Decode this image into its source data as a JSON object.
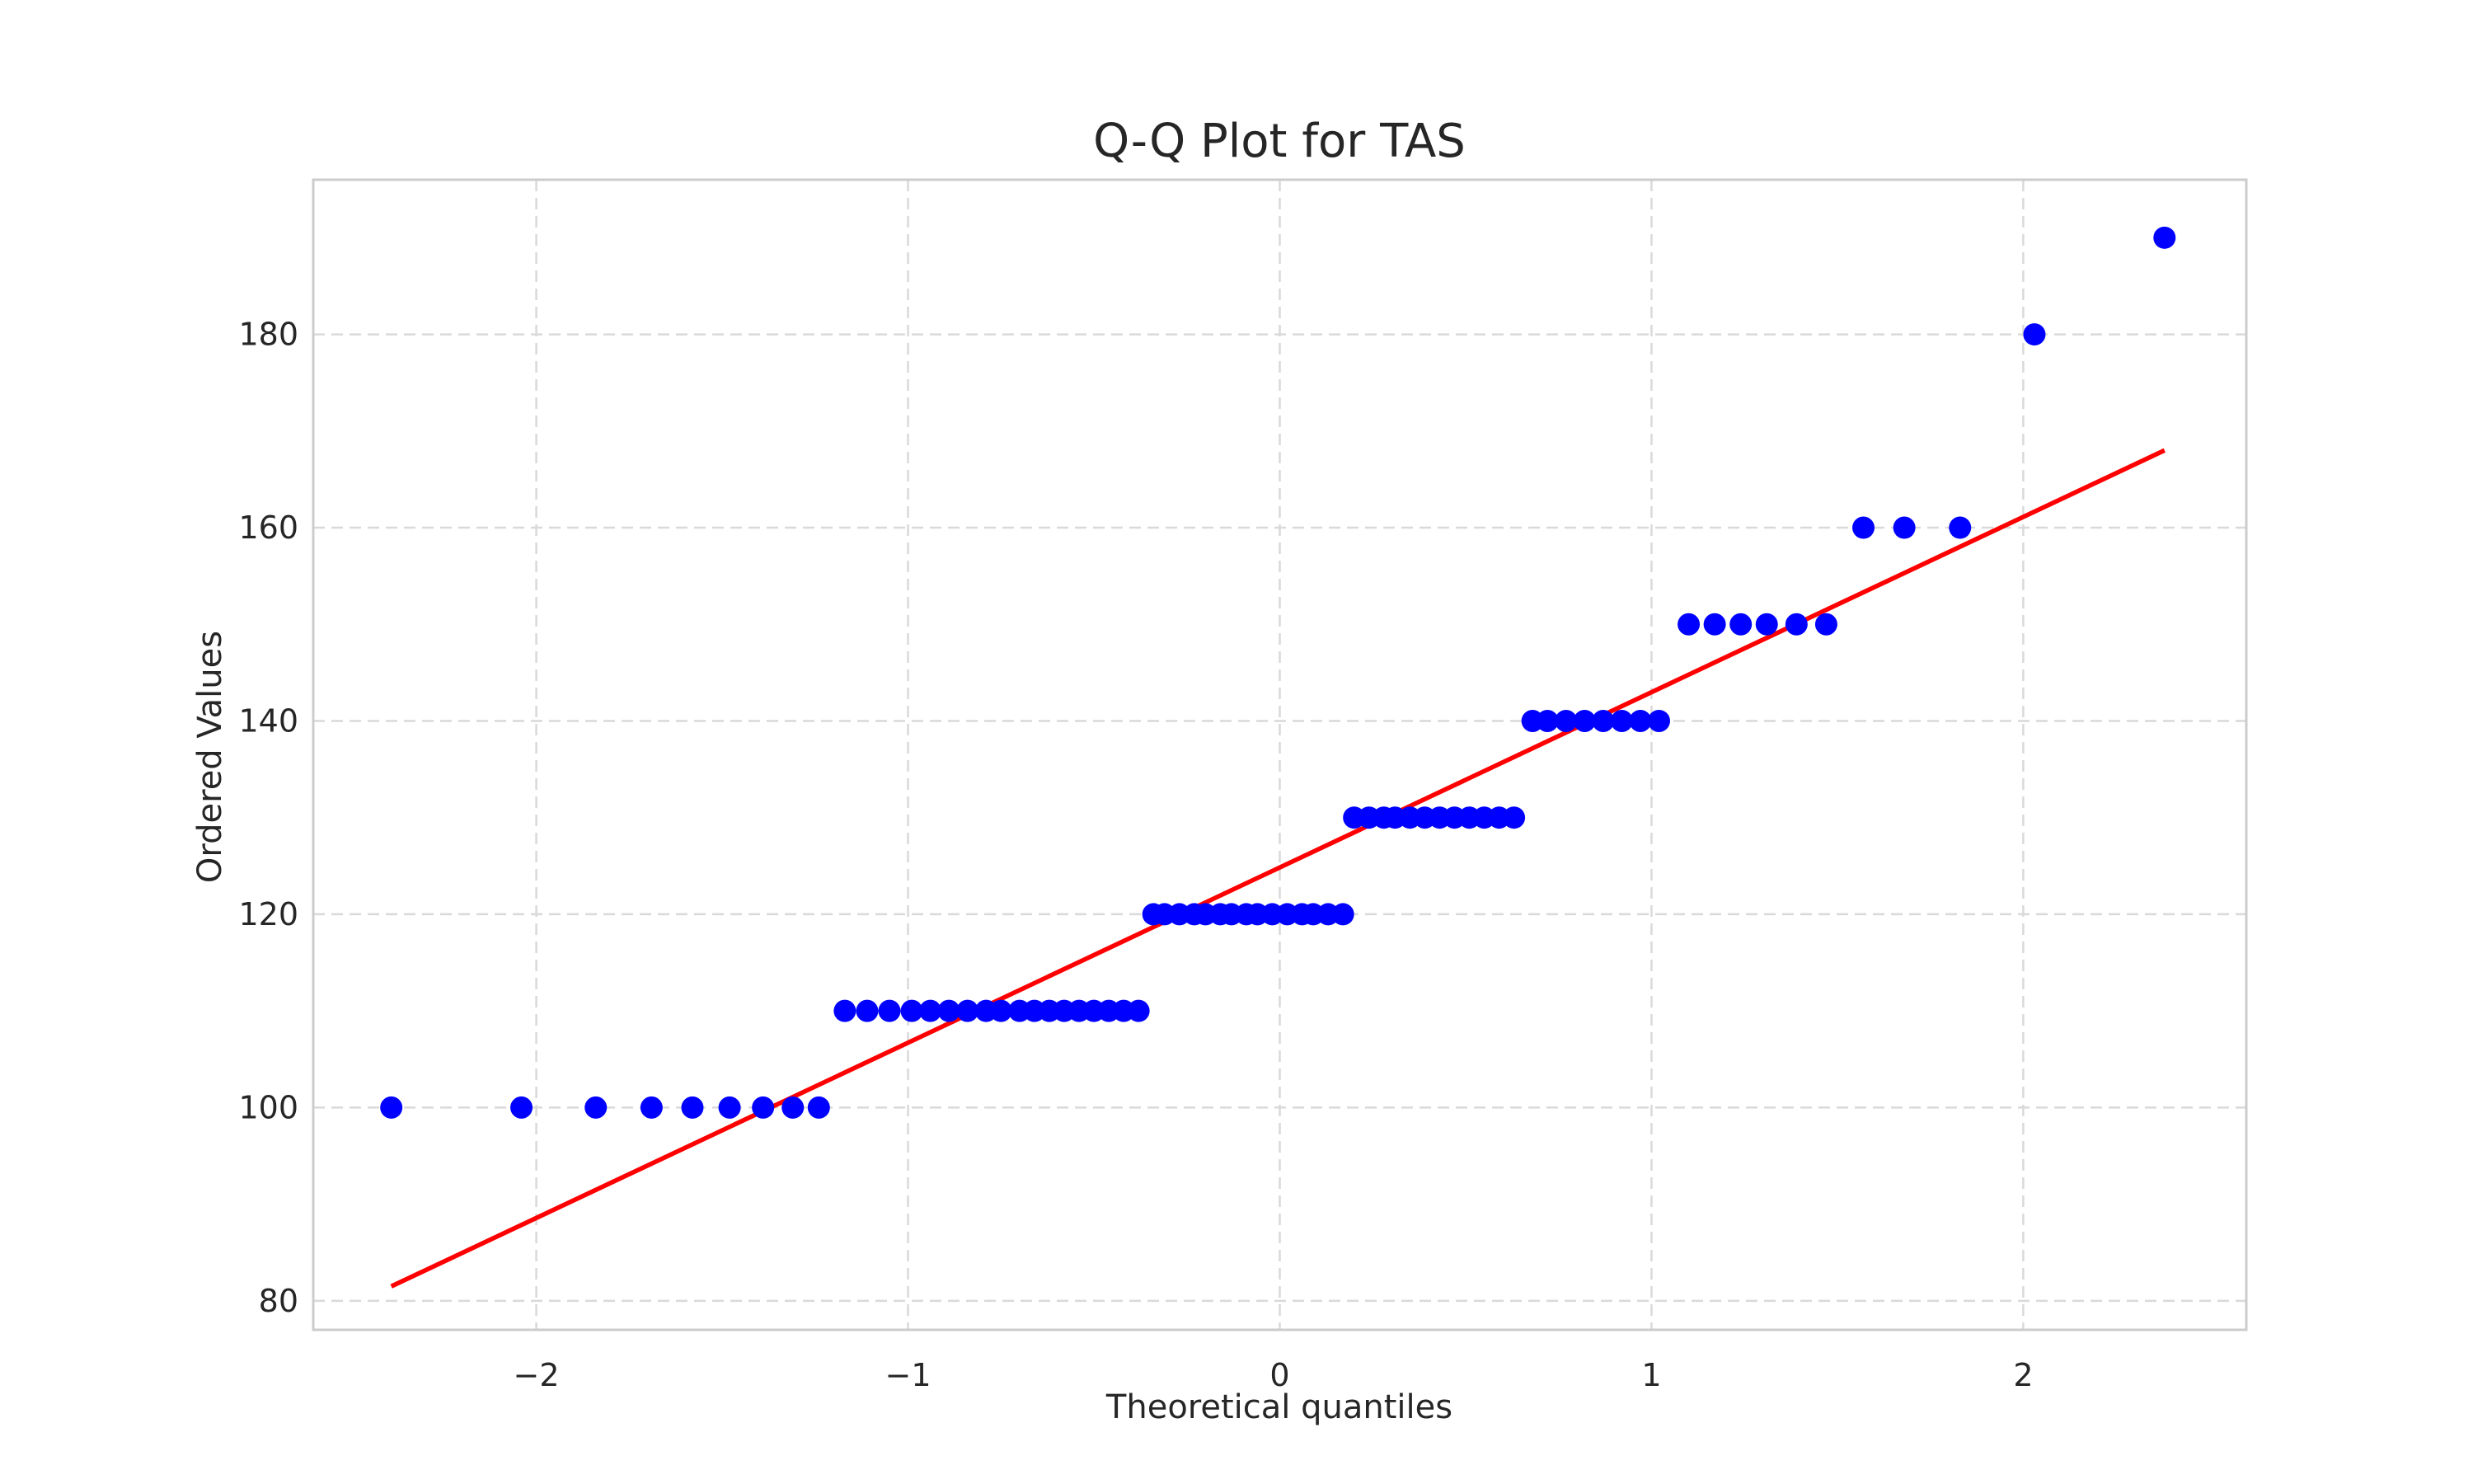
{
  "colors": {
    "points": "#0000ff",
    "fit_line": "#ff0000",
    "grid": "#d9d9d9",
    "frame": "#cccccc",
    "text": "#262626"
  },
  "chart_data": {
    "type": "scatter",
    "title": "Q-Q Plot for TAS",
    "xlabel": "Theoretical quantiles",
    "ylabel": "Ordered Values",
    "xlim": [
      -2.6,
      2.6
    ],
    "ylim": [
      77,
      196
    ],
    "xticks": [
      -2,
      -1,
      0,
      1,
      2
    ],
    "xtick_labels": [
      "−2",
      "−1",
      "0",
      "1",
      "2"
    ],
    "yticks": [
      80,
      100,
      120,
      140,
      160,
      180
    ],
    "ytick_labels": [
      "80",
      "100",
      "120",
      "140",
      "160",
      "180"
    ],
    "grid": true,
    "series": [
      {
        "values": [
          {
            "x": -2.39,
            "y": 100
          },
          {
            "x": -2.04,
            "y": 100
          },
          {
            "x": -1.84,
            "y": 100
          },
          {
            "x": -1.69,
            "y": 100
          },
          {
            "x": -1.58,
            "y": 100
          },
          {
            "x": -1.48,
            "y": 100
          },
          {
            "x": -1.39,
            "y": 100
          },
          {
            "x": -1.31,
            "y": 100
          },
          {
            "x": -1.24,
            "y": 100
          },
          {
            "x": -1.17,
            "y": 110
          },
          {
            "x": -1.11,
            "y": 110
          },
          {
            "x": -1.05,
            "y": 110
          },
          {
            "x": -0.99,
            "y": 110
          },
          {
            "x": -0.94,
            "y": 110
          },
          {
            "x": -0.89,
            "y": 110
          },
          {
            "x": -0.84,
            "y": 110
          },
          {
            "x": -0.79,
            "y": 110
          },
          {
            "x": -0.75,
            "y": 110
          },
          {
            "x": -0.7,
            "y": 110
          },
          {
            "x": -0.66,
            "y": 110
          },
          {
            "x": -0.62,
            "y": 110
          },
          {
            "x": -0.58,
            "y": 110
          },
          {
            "x": -0.54,
            "y": 110
          },
          {
            "x": -0.5,
            "y": 110
          },
          {
            "x": -0.46,
            "y": 110
          },
          {
            "x": -0.42,
            "y": 110
          },
          {
            "x": -0.38,
            "y": 110
          },
          {
            "x": -0.34,
            "y": 120
          },
          {
            "x": -0.31,
            "y": 120
          },
          {
            "x": -0.27,
            "y": 120
          },
          {
            "x": -0.23,
            "y": 120
          },
          {
            "x": -0.2,
            "y": 120
          },
          {
            "x": -0.16,
            "y": 120
          },
          {
            "x": -0.13,
            "y": 120
          },
          {
            "x": -0.09,
            "y": 120
          },
          {
            "x": -0.06,
            "y": 120
          },
          {
            "x": -0.02,
            "y": 120
          },
          {
            "x": 0.02,
            "y": 120
          },
          {
            "x": 0.06,
            "y": 120
          },
          {
            "x": 0.09,
            "y": 120
          },
          {
            "x": 0.13,
            "y": 120
          },
          {
            "x": 0.17,
            "y": 120
          },
          {
            "x": 0.2,
            "y": 130
          },
          {
            "x": 0.24,
            "y": 130
          },
          {
            "x": 0.28,
            "y": 130
          },
          {
            "x": 0.31,
            "y": 130
          },
          {
            "x": 0.35,
            "y": 130
          },
          {
            "x": 0.39,
            "y": 130
          },
          {
            "x": 0.43,
            "y": 130
          },
          {
            "x": 0.47,
            "y": 130
          },
          {
            "x": 0.51,
            "y": 130
          },
          {
            "x": 0.55,
            "y": 130
          },
          {
            "x": 0.59,
            "y": 130
          },
          {
            "x": 0.63,
            "y": 130
          },
          {
            "x": 0.68,
            "y": 140
          },
          {
            "x": 0.72,
            "y": 140
          },
          {
            "x": 0.77,
            "y": 140
          },
          {
            "x": 0.82,
            "y": 140
          },
          {
            "x": 0.87,
            "y": 140
          },
          {
            "x": 0.92,
            "y": 140
          },
          {
            "x": 0.97,
            "y": 140
          },
          {
            "x": 1.02,
            "y": 140
          },
          {
            "x": 1.1,
            "y": 150
          },
          {
            "x": 1.17,
            "y": 150
          },
          {
            "x": 1.24,
            "y": 150
          },
          {
            "x": 1.31,
            "y": 150
          },
          {
            "x": 1.39,
            "y": 150
          },
          {
            "x": 1.47,
            "y": 150
          },
          {
            "x": 1.57,
            "y": 160
          },
          {
            "x": 1.68,
            "y": 160
          },
          {
            "x": 1.83,
            "y": 160
          },
          {
            "x": 2.03,
            "y": 180
          },
          {
            "x": 2.38,
            "y": 190
          }
        ]
      }
    ],
    "fit_line": {
      "x": [
        -2.39,
        2.38
      ],
      "y": [
        81.5,
        168
      ]
    }
  }
}
